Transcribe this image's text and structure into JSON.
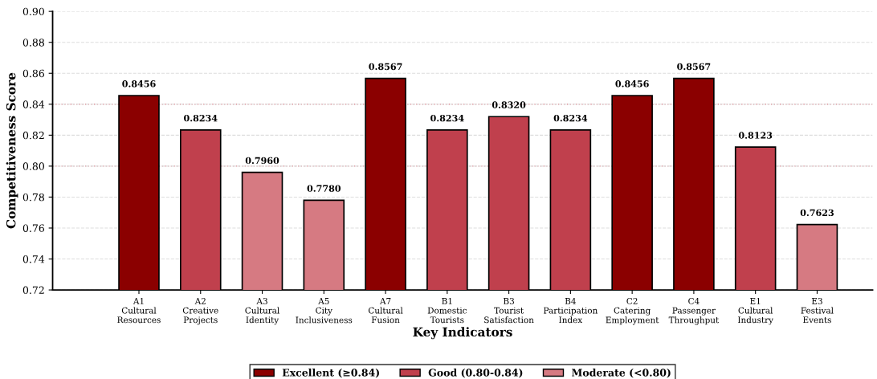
{
  "chart_data": {
    "type": "bar",
    "xlabel": "Key Indicators",
    "ylabel": "Competitiveness Score",
    "categories": [
      "A1\nCultural\nResources",
      "A2\nCreative\nProjects",
      "A3\nCultural\nIdentity",
      "A5\nCity\nInclusiveness",
      "A7\nCultural\nFusion",
      "B1\nDomestic\nTourists",
      "B3\nTourist\nSatisfaction",
      "B4\nParticipation\nIndex",
      "C2\nCatering\nEmployment",
      "C4\nPassenger\nThroughput",
      "E1\nCultural\nIndustry",
      "E3\nFestival\nEvents"
    ],
    "series": [
      {
        "name": "Excellent (≥0.84)",
        "color": "#8b0000",
        "values": [
          0.8456,
          null,
          null,
          null,
          0.8567,
          null,
          null,
          null,
          0.8456,
          0.8567,
          null,
          null
        ],
        "value_labels": [
          "0.8456",
          null,
          null,
          null,
          "0.8567",
          null,
          null,
          null,
          "0.8456",
          "0.8567",
          null,
          null
        ]
      },
      {
        "name": "Good (0.80-0.84)",
        "color": "#c0404d",
        "values": [
          null,
          0.8234,
          null,
          null,
          null,
          0.8234,
          0.832,
          0.8234,
          null,
          null,
          0.8123,
          null
        ],
        "value_labels": [
          null,
          "0.8234",
          null,
          null,
          null,
          "0.8234",
          "0.8320",
          "0.8234",
          null,
          null,
          "0.8123",
          null
        ]
      },
      {
        "name": "Moderate (<0.80)",
        "color": "#d67a82",
        "values": [
          null,
          null,
          0.796,
          0.778,
          null,
          null,
          null,
          null,
          null,
          null,
          null,
          0.7623
        ],
        "value_labels": [
          null,
          null,
          "0.7960",
          "0.7780",
          null,
          null,
          null,
          null,
          null,
          null,
          null,
          "0.7623"
        ]
      }
    ],
    "ylim": [
      0.72,
      0.9
    ],
    "yticks": [
      "0.72",
      "0.74",
      "0.76",
      "0.78",
      "0.80",
      "0.82",
      "0.84",
      "0.86",
      "0.88",
      "0.90"
    ],
    "ref_lines": [
      {
        "axis": "y",
        "value": 0.84,
        "color": "#c0404d",
        "line_style": "dotted"
      },
      {
        "axis": "y",
        "value": 0.8,
        "color": "#c0404d",
        "line_style": "dotted"
      }
    ],
    "grid": "y",
    "legend": "bottom"
  }
}
